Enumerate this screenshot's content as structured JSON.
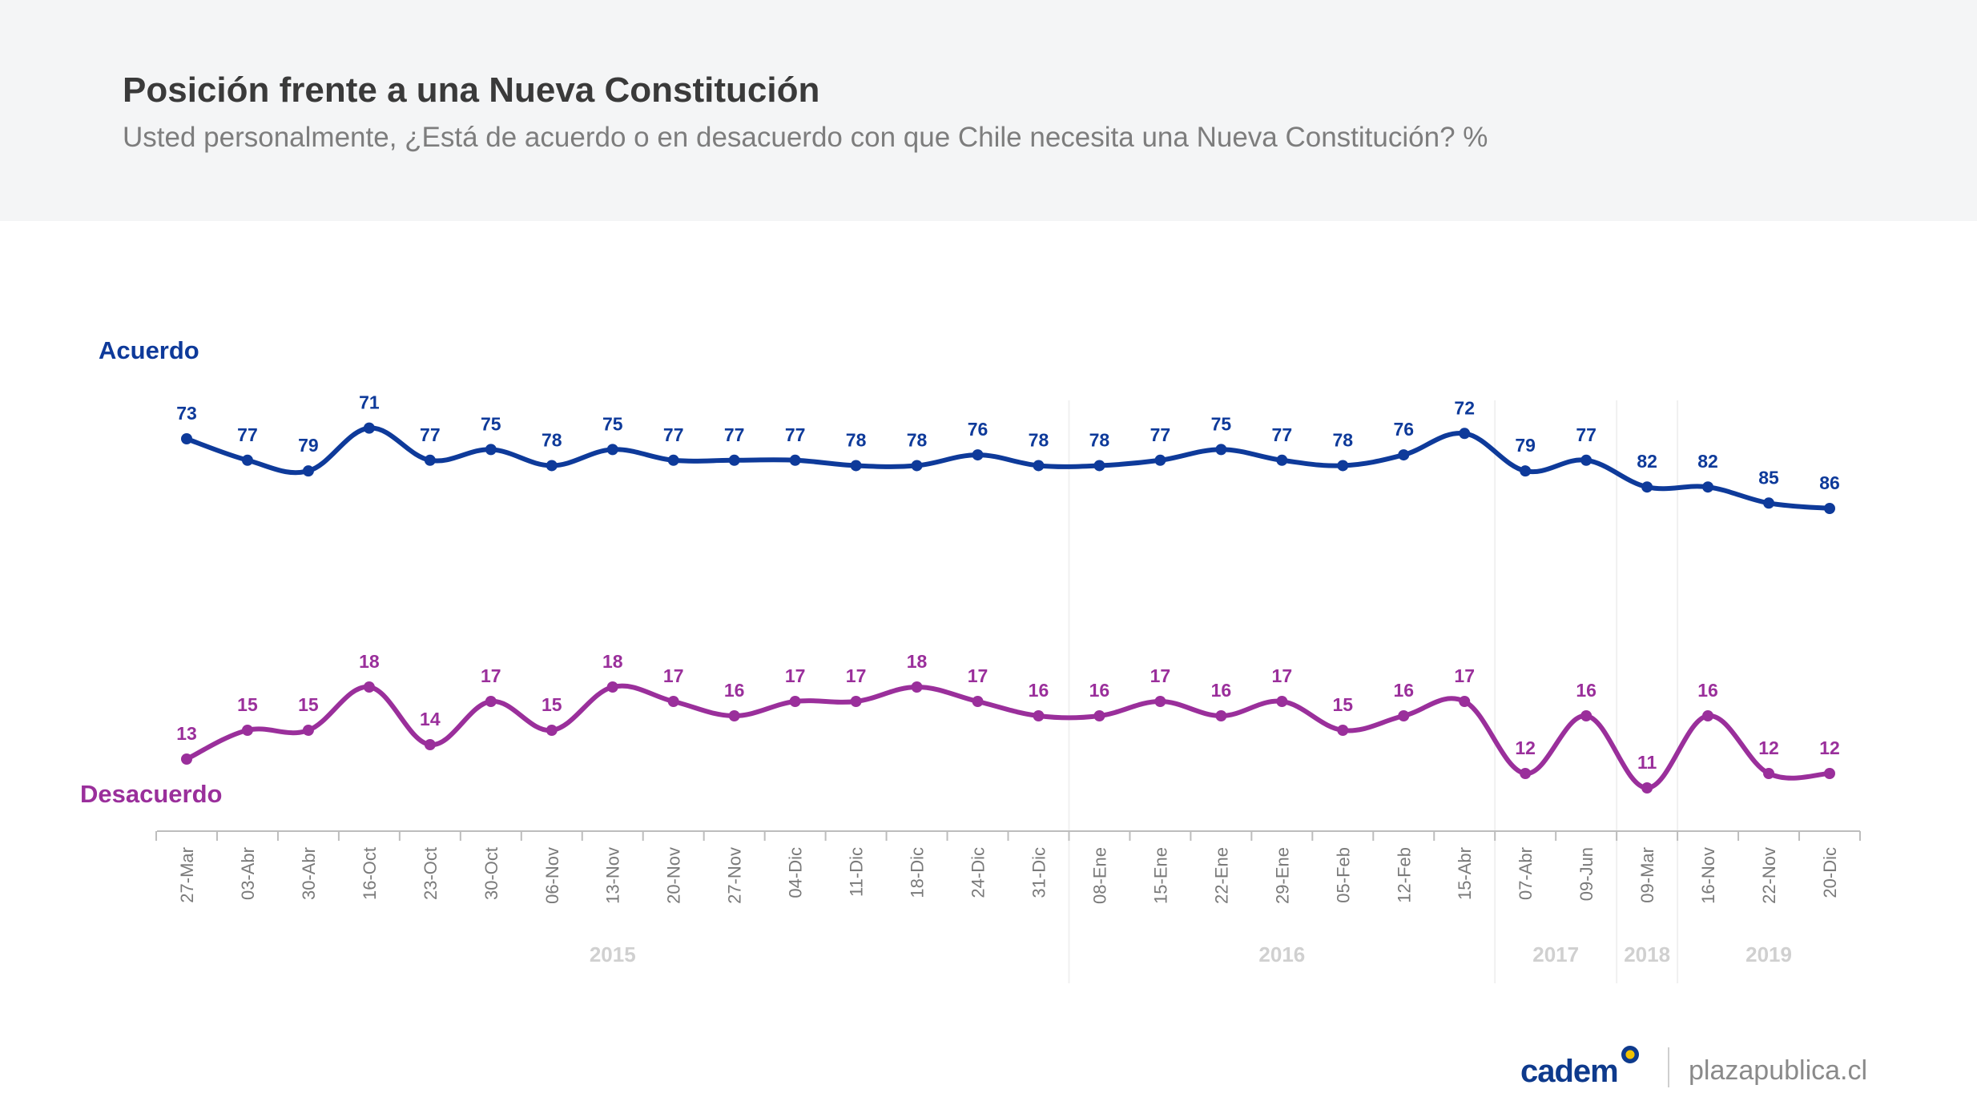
{
  "header": {
    "title": "Posición frente a una Nueva Constitución",
    "subtitle": "Usted personalmente, ¿Está de acuerdo o en desacuerdo con que Chile necesita una Nueva Constitución? %"
  },
  "chart_data": {
    "type": "line",
    "categories": [
      "27-Mar",
      "03-Abr",
      "30-Abr",
      "16-Oct",
      "23-Oct",
      "30-Oct",
      "06-Nov",
      "13-Nov",
      "20-Nov",
      "27-Nov",
      "04-Dic",
      "11-Dic",
      "18-Dic",
      "24-Dic",
      "31-Dic",
      "08-Ene",
      "15-Ene",
      "22-Ene",
      "29-Ene",
      "05-Feb",
      "12-Feb",
      "15-Abr",
      "07-Abr",
      "09-Jun",
      "09-Mar",
      "16-Nov",
      "22-Nov",
      "20-Dic"
    ],
    "year_groups": [
      {
        "label": "2015",
        "start": 0,
        "end": 14
      },
      {
        "label": "2016",
        "start": 15,
        "end": 21
      },
      {
        "label": "2017",
        "start": 22,
        "end": 23
      },
      {
        "label": "2018",
        "start": 24,
        "end": 24
      },
      {
        "label": "2019",
        "start": 25,
        "end": 27
      }
    ],
    "series": [
      {
        "name": "Acuerdo",
        "color": "#0e3a9a",
        "values": [
          73,
          77,
          79,
          71,
          77,
          75,
          78,
          75,
          77,
          77,
          77,
          78,
          78,
          76,
          78,
          78,
          77,
          75,
          77,
          78,
          76,
          72,
          79,
          77,
          82,
          82,
          85,
          86
        ]
      },
      {
        "name": "Desacuerdo",
        "color": "#9a2f9b",
        "values": [
          13,
          15,
          15,
          18,
          14,
          17,
          15,
          18,
          17,
          16,
          17,
          17,
          18,
          17,
          16,
          16,
          17,
          16,
          17,
          15,
          16,
          17,
          12,
          16,
          11,
          16,
          12,
          12
        ]
      }
    ],
    "ylim": [
      0,
      100
    ],
    "grid": false
  },
  "footer": {
    "brand": "cadem",
    "site": "plazapublica.cl"
  }
}
